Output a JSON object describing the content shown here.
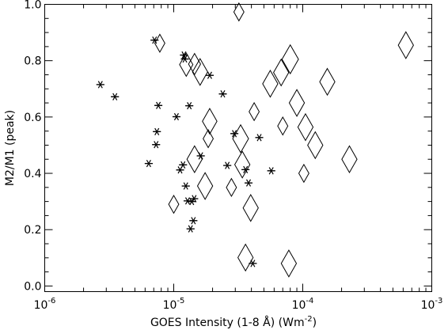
{
  "chart_data": {
    "type": "scatter",
    "title": "",
    "xlabel": "GOES Intensity (1-8 Å) (Wm",
    "xlabel_exponent": "-2",
    "xlabel_suffix": ")",
    "ylabel": "M2/M1 (peak)",
    "x_scale": "log",
    "xlim": [
      1e-06,
      0.001
    ],
    "ylim": [
      -0.02,
      1.0
    ],
    "x_major_ticks": [
      {
        "value": 1e-06,
        "base": "10",
        "exp": "-6"
      },
      {
        "value": 1e-05,
        "base": "10",
        "exp": "-5"
      },
      {
        "value": 0.0001,
        "base": "10",
        "exp": "-4"
      },
      {
        "value": 0.001,
        "base": "10",
        "exp": "-3"
      }
    ],
    "y_ticks": [
      {
        "value": 0.0,
        "label": "0.0"
      },
      {
        "value": 0.2,
        "label": "0.2"
      },
      {
        "value": 0.4,
        "label": "0.4"
      },
      {
        "value": 0.6,
        "label": "0.6"
      },
      {
        "value": 0.8,
        "label": "0.8"
      },
      {
        "value": 1.0,
        "label": "1.0"
      }
    ],
    "grid": false,
    "series": [
      {
        "marker": "asterisk",
        "points": [
          {
            "x": 2.7e-06,
            "y": 0.715
          },
          {
            "x": 3.5e-06,
            "y": 0.672
          },
          {
            "x": 6.4e-06,
            "y": 0.435
          },
          {
            "x": 7.1e-06,
            "y": 0.873
          },
          {
            "x": 7.3e-06,
            "y": 0.502
          },
          {
            "x": 7.4e-06,
            "y": 0.548
          },
          {
            "x": 7.6e-06,
            "y": 0.641
          },
          {
            "x": 1.05e-05,
            "y": 0.601
          },
          {
            "x": 1.12e-05,
            "y": 0.412
          },
          {
            "x": 1.18e-05,
            "y": 0.43
          },
          {
            "x": 1.2e-05,
            "y": 0.82
          },
          {
            "x": 1.22e-05,
            "y": 0.806
          },
          {
            "x": 1.24e-05,
            "y": 0.355
          },
          {
            "x": 1.28e-05,
            "y": 0.302
          },
          {
            "x": 1.32e-05,
            "y": 0.64
          },
          {
            "x": 1.35e-05,
            "y": 0.203
          },
          {
            "x": 1.38e-05,
            "y": 0.3
          },
          {
            "x": 1.42e-05,
            "y": 0.232
          },
          {
            "x": 1.44e-05,
            "y": 0.31
          },
          {
            "x": 1.62e-05,
            "y": 0.462
          },
          {
            "x": 1.9e-05,
            "y": 0.748
          },
          {
            "x": 2.4e-05,
            "y": 0.682
          },
          {
            "x": 2.6e-05,
            "y": 0.428
          },
          {
            "x": 2.95e-05,
            "y": 0.541
          },
          {
            "x": 3.6e-05,
            "y": 0.413
          },
          {
            "x": 3.8e-05,
            "y": 0.366
          },
          {
            "x": 4.1e-05,
            "y": 0.08
          },
          {
            "x": 4.6e-05,
            "y": 0.527
          },
          {
            "x": 5.7e-05,
            "y": 0.409
          }
        ]
      },
      {
        "marker": "diamond",
        "points": [
          {
            "x": 7.8e-06,
            "y": 0.862,
            "size": 0.3
          },
          {
            "x": 1e-05,
            "y": 0.29,
            "size": 0.3
          },
          {
            "x": 1.25e-05,
            "y": 0.786,
            "size": 0.55
          },
          {
            "x": 1.45e-05,
            "y": 0.788,
            "size": 0.45
          },
          {
            "x": 1.45e-05,
            "y": 0.45,
            "size": 0.7
          },
          {
            "x": 1.6e-05,
            "y": 0.76,
            "size": 0.7
          },
          {
            "x": 1.75e-05,
            "y": 0.355,
            "size": 0.7
          },
          {
            "x": 1.85e-05,
            "y": 0.523,
            "size": 0.3
          },
          {
            "x": 1.9e-05,
            "y": 0.585,
            "size": 0.65
          },
          {
            "x": 2.8e-05,
            "y": 0.35,
            "size": 0.3
          },
          {
            "x": 3.2e-05,
            "y": 0.973,
            "size": 0.3
          },
          {
            "x": 3.3e-05,
            "y": 0.523,
            "size": 0.75
          },
          {
            "x": 3.4e-05,
            "y": 0.431,
            "size": 0.7
          },
          {
            "x": 3.6e-05,
            "y": 0.101,
            "size": 0.7
          },
          {
            "x": 3.95e-05,
            "y": 0.277,
            "size": 0.7
          },
          {
            "x": 4.2e-05,
            "y": 0.619,
            "size": 0.3
          },
          {
            "x": 5.6e-05,
            "y": 0.718,
            "size": 0.7
          },
          {
            "x": 6.8e-05,
            "y": 0.758,
            "size": 0.7
          },
          {
            "x": 7e-05,
            "y": 0.568,
            "size": 0.3
          },
          {
            "x": 7.8e-05,
            "y": 0.08,
            "size": 0.7
          },
          {
            "x": 8e-05,
            "y": 0.805,
            "size": 0.8
          },
          {
            "x": 9e-05,
            "y": 0.65,
            "size": 0.7
          },
          {
            "x": 0.000102,
            "y": 0.4,
            "size": 0.3
          },
          {
            "x": 0.000105,
            "y": 0.564,
            "size": 0.7
          },
          {
            "x": 0.000125,
            "y": 0.5,
            "size": 0.7
          },
          {
            "x": 0.000155,
            "y": 0.725,
            "size": 0.7
          },
          {
            "x": 0.00023,
            "y": 0.45,
            "size": 0.7
          },
          {
            "x": 0.00063,
            "y": 0.855,
            "size": 0.7
          }
        ]
      }
    ]
  }
}
